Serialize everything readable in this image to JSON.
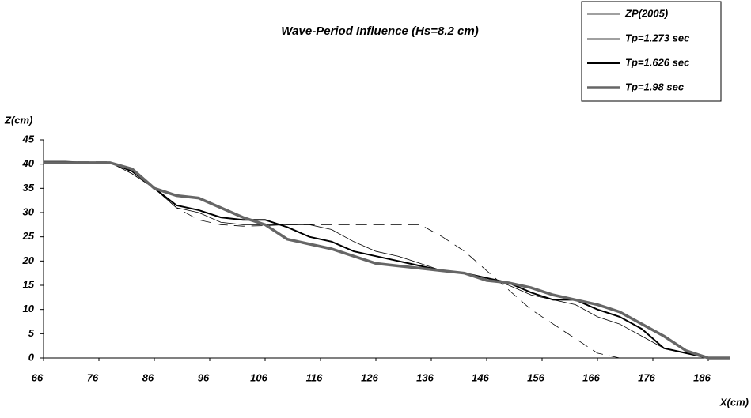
{
  "chart_data": {
    "type": "line",
    "title": "Wave-Period Influence (Hs=8.2 cm)",
    "x_label": "X(cm)",
    "y_label": "Z(cm)",
    "x": [
      66,
      70,
      74,
      78,
      82,
      86,
      90,
      94,
      98,
      102,
      106,
      110,
      114,
      118,
      122,
      126,
      130,
      134,
      138,
      142,
      146,
      150,
      154,
      158,
      162,
      166,
      170,
      174,
      178,
      182,
      186,
      190
    ],
    "series": [
      {
        "name": "ZP(2005)",
        "color": "#000000",
        "dash": true,
        "values": [
          40.5,
          40.5,
          40.5,
          40.5,
          38,
          35,
          31,
          28.5,
          27.5,
          27.2,
          27.3,
          27.5,
          27.5,
          27.5,
          27.5,
          27.5,
          27.5,
          27.5,
          25,
          22,
          18,
          14,
          10,
          7,
          4,
          1,
          0,
          0,
          0,
          0,
          0,
          0
        ]
      },
      {
        "name": "Tp=1.273 sec",
        "color": "#000000",
        "values": [
          40.5,
          40.3,
          40.3,
          40.3,
          38,
          35,
          31,
          30,
          28,
          27.5,
          27.5,
          27.5,
          27.5,
          26.5,
          24,
          22,
          21,
          19.5,
          18,
          17.5,
          16.5,
          15,
          13,
          12,
          11,
          8.5,
          7,
          4.5,
          2,
          1,
          0,
          0
        ]
      },
      {
        "name": "Tp=1.626 sec",
        "color": "#000000",
        "values": [
          40.5,
          40.5,
          40.3,
          40.3,
          38.5,
          35,
          31.5,
          30.5,
          29,
          28.5,
          28.5,
          27,
          25,
          24,
          22,
          21,
          20,
          19,
          18,
          17.5,
          16.5,
          15.5,
          13.5,
          12,
          12,
          10,
          8.5,
          6,
          2,
          1,
          0,
          0
        ]
      },
      {
        "name": "Tp=1.98 sec",
        "color": "#666666",
        "values": [
          40.3,
          40.3,
          40.3,
          40.3,
          39,
          35,
          33.5,
          33,
          31,
          29,
          27.5,
          24.5,
          23.5,
          22.5,
          21,
          19.5,
          19,
          18.5,
          18,
          17.5,
          16,
          15.5,
          14.5,
          13,
          12,
          11,
          9.5,
          7,
          4.5,
          1.5,
          0,
          0
        ]
      }
    ],
    "xlim": [
      66,
      190
    ],
    "ylim": [
      0,
      45
    ],
    "xticks": [
      66,
      76,
      86,
      96,
      106,
      116,
      126,
      136,
      146,
      156,
      166,
      176,
      186
    ],
    "yticks": [
      0,
      5,
      10,
      15,
      20,
      25,
      30,
      35,
      40,
      45
    ],
    "grid": false,
    "legend": "top-right"
  }
}
